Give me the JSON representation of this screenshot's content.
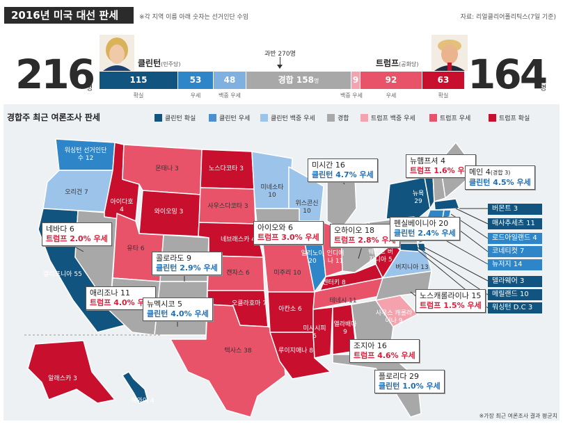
{
  "header": {
    "title": "2016년 미국 대선 판세",
    "note": "※각 지역 이름 아래 숫자는 선거인단 수임",
    "source": "자료: 리얼클리어폴리틱스(7일 기준)"
  },
  "clinton": {
    "total": "216",
    "unit": "명",
    "name": "클린턴",
    "party": "(민주당)"
  },
  "trump": {
    "total": "164",
    "unit": "명",
    "name": "트럼프",
    "party": "(공화당)"
  },
  "majority": "과반 270명",
  "bar": {
    "clinton_solid": "115",
    "clinton_likely": "53",
    "clinton_lean": "48",
    "tossup_label": "경합",
    "tossup": "158",
    "tossup_unit": "명",
    "trump_lean": "9",
    "trump_likely": "92",
    "trump_solid": "63",
    "lab_solid": "확실",
    "lab_likely": "우세",
    "lab_lean": "백중 우세"
  },
  "legend": {
    "title": "경합주 최근 여론조사 판세",
    "items": [
      "클린턴 확실",
      "클린턴 우세",
      "클린턴 백중 우세",
      "경합",
      "트럼프 백중 우세",
      "트럼프 우세",
      "트럼프 확실"
    ],
    "colors": [
      "#10547f",
      "#4a8fd0",
      "#9cc3ea",
      "#a8a8a8",
      "#f4a3ae",
      "#e8536a",
      "#c8102e"
    ]
  },
  "states": {
    "wa": "워싱턴 선거인단 수 12",
    "or": "오리건 7",
    "ca": "캘리포니아 55",
    "nv": "",
    "id": "아이다호 4",
    "mt": "몬태나 3",
    "wy": "와이오밍 3",
    "ut": "유타 6",
    "az": "",
    "co": "",
    "nm": "",
    "nd": "노스다코타 3",
    "sd": "사우스다코타 3",
    "ne": "네브래스카 4",
    "ks": "캔자스 6",
    "ok": "오클라호마 7",
    "tx": "텍사스 38",
    "mn": "미네소타 10",
    "wi": "위스콘신 10",
    "mo": "미주리 10",
    "ar": "아칸소 6",
    "la": "루이지애나 8",
    "il": "일리노이 20",
    "in": "인디애나 11",
    "ky": "켄터키 8",
    "tn": "테네시 11",
    "ms": "미시시피 6",
    "al": "앨라배마 9",
    "wv": "웨스트 버지니아 5",
    "va": "버지니아 13",
    "sc": "사우스 캐롤라이나 9",
    "ny": "뉴욕 29",
    "ak": "알래스카 3",
    "hi": "하와이 4"
  },
  "callouts": {
    "nv": {
      "name": "네바다 6",
      "val": "트럼프 2.0% 우세"
    },
    "az": {
      "name": "애리조나 11",
      "val": "트럼프 4.0% 우세"
    },
    "co": {
      "name": "콜로라도 9",
      "val": "클린턴 2.9% 우세"
    },
    "nm": {
      "name": "뉴멕시코 5",
      "val": "클린턴 4.0% 우세"
    },
    "ia": {
      "name": "아이오와 6",
      "val": "트럼프 3.0% 우세"
    },
    "mi": {
      "name": "미시간 16",
      "val": "클린턴 4.7% 우세"
    },
    "oh": {
      "name": "오하이오 18",
      "val": "트럼프 2.8% 우세"
    },
    "pa": {
      "name": "펜실베이니아 20",
      "val": "클린턴 2.4% 우세"
    },
    "nh": {
      "name": "뉴햄프셔 4",
      "val": "트럼프 1.6% 우세"
    },
    "me": {
      "name": "메인 4",
      "sub": "(경합 3)",
      "val": "클린턴 4.5% 우세"
    },
    "nc": {
      "name": "노스캐롤라이나 15",
      "val": "트럼프 1.5% 우세"
    },
    "ga": {
      "name": "조지아 16",
      "val": "트럼프 4.6% 우세"
    },
    "fl": {
      "name": "플로리다 29",
      "val": "클린턴 1.0% 우세"
    }
  },
  "northeast": [
    "버몬트 3",
    "매사추세츠 11",
    "로드아일랜드 4",
    "코네티컷 7",
    "뉴저지 14",
    "델라웨어 3",
    "메릴랜드 10",
    "워싱턴 D.C 3"
  ],
  "footnote": "※가장 최근 여론조사 결과 평균치"
}
